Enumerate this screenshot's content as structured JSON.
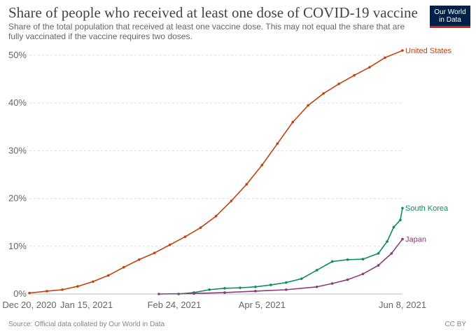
{
  "header": {
    "title": "Share of people who received at least one dose of COVID-19 vaccine",
    "subtitle": "Share of the total population that received at least one vaccine dose. This may not equal the share that are fully vaccinated if the vaccine requires two doses."
  },
  "logo": {
    "line1": "Our World",
    "line2": "in Data"
  },
  "footer": {
    "source": "Source: Official data collated by Our World in Data",
    "license": "CC BY"
  },
  "chart_data": {
    "type": "line",
    "title": "Share of people who received at least one dose of COVID-19 vaccine",
    "subtitle": "Share of the total population that received at least one vaccine dose. This may not equal the share that are fully vaccinated if the vaccine requires two doses.",
    "xlabel": "",
    "ylabel": "",
    "ylim": [
      0,
      52
    ],
    "xlim": [
      "2020-12-20",
      "2021-06-08"
    ],
    "y_ticks": [
      "0%",
      "10%",
      "20%",
      "30%",
      "40%",
      "50%"
    ],
    "y_tick_values": [
      0,
      10,
      20,
      30,
      40,
      50
    ],
    "x_ticks": [
      "Dec 20, 2020",
      "Jan 15, 2021",
      "Feb 24, 2021",
      "Apr 5, 2021",
      "Jun 8, 2021"
    ],
    "x_tick_dates": [
      "2020-12-20",
      "2021-01-15",
      "2021-02-24",
      "2021-04-05",
      "2021-06-08"
    ],
    "grid": true,
    "legend": "inline labels at line ends",
    "series": [
      {
        "name": "United States",
        "color": "#c2410c",
        "points": [
          [
            "2020-12-20",
            0.2
          ],
          [
            "2020-12-28",
            0.6
          ],
          [
            "2021-01-04",
            0.9
          ],
          [
            "2021-01-11",
            1.6
          ],
          [
            "2021-01-18",
            2.6
          ],
          [
            "2021-01-25",
            3.9
          ],
          [
            "2021-02-01",
            5.6
          ],
          [
            "2021-02-08",
            7.2
          ],
          [
            "2021-02-15",
            8.6
          ],
          [
            "2021-02-22",
            10.3
          ],
          [
            "2021-03-01",
            12.0
          ],
          [
            "2021-03-08",
            13.9
          ],
          [
            "2021-03-15",
            16.3
          ],
          [
            "2021-03-22",
            19.5
          ],
          [
            "2021-03-29",
            23.0
          ],
          [
            "2021-04-05",
            27.0
          ],
          [
            "2021-04-12",
            31.5
          ],
          [
            "2021-04-19",
            36.0
          ],
          [
            "2021-04-26",
            39.5
          ],
          [
            "2021-05-03",
            42.0
          ],
          [
            "2021-05-10",
            44.0
          ],
          [
            "2021-05-17",
            45.8
          ],
          [
            "2021-05-24",
            47.5
          ],
          [
            "2021-05-31",
            49.5
          ],
          [
            "2021-06-08",
            51.0
          ]
        ]
      },
      {
        "name": "South Korea",
        "color": "#0d8c5e",
        "points": [
          [
            "2021-02-26",
            0.0
          ],
          [
            "2021-03-05",
            0.3
          ],
          [
            "2021-03-12",
            0.9
          ],
          [
            "2021-03-19",
            1.2
          ],
          [
            "2021-03-26",
            1.3
          ],
          [
            "2021-04-02",
            1.5
          ],
          [
            "2021-04-09",
            1.9
          ],
          [
            "2021-04-16",
            2.4
          ],
          [
            "2021-04-23",
            3.2
          ],
          [
            "2021-04-30",
            5.0
          ],
          [
            "2021-05-07",
            6.8
          ],
          [
            "2021-05-14",
            7.2
          ],
          [
            "2021-05-21",
            7.3
          ],
          [
            "2021-05-28",
            8.5
          ],
          [
            "2021-06-01",
            11.0
          ],
          [
            "2021-06-04",
            14.0
          ],
          [
            "2021-06-07",
            15.5
          ],
          [
            "2021-06-08",
            18.0
          ]
        ]
      },
      {
        "name": "Japan",
        "color": "#8c3a7a",
        "points": [
          [
            "2021-02-17",
            0.0
          ],
          [
            "2021-03-05",
            0.1
          ],
          [
            "2021-03-19",
            0.3
          ],
          [
            "2021-04-02",
            0.6
          ],
          [
            "2021-04-16",
            0.9
          ],
          [
            "2021-04-30",
            1.5
          ],
          [
            "2021-05-07",
            2.2
          ],
          [
            "2021-05-14",
            3.0
          ],
          [
            "2021-05-21",
            4.2
          ],
          [
            "2021-05-28",
            6.0
          ],
          [
            "2021-06-03",
            8.5
          ],
          [
            "2021-06-08",
            11.5
          ]
        ]
      }
    ]
  }
}
